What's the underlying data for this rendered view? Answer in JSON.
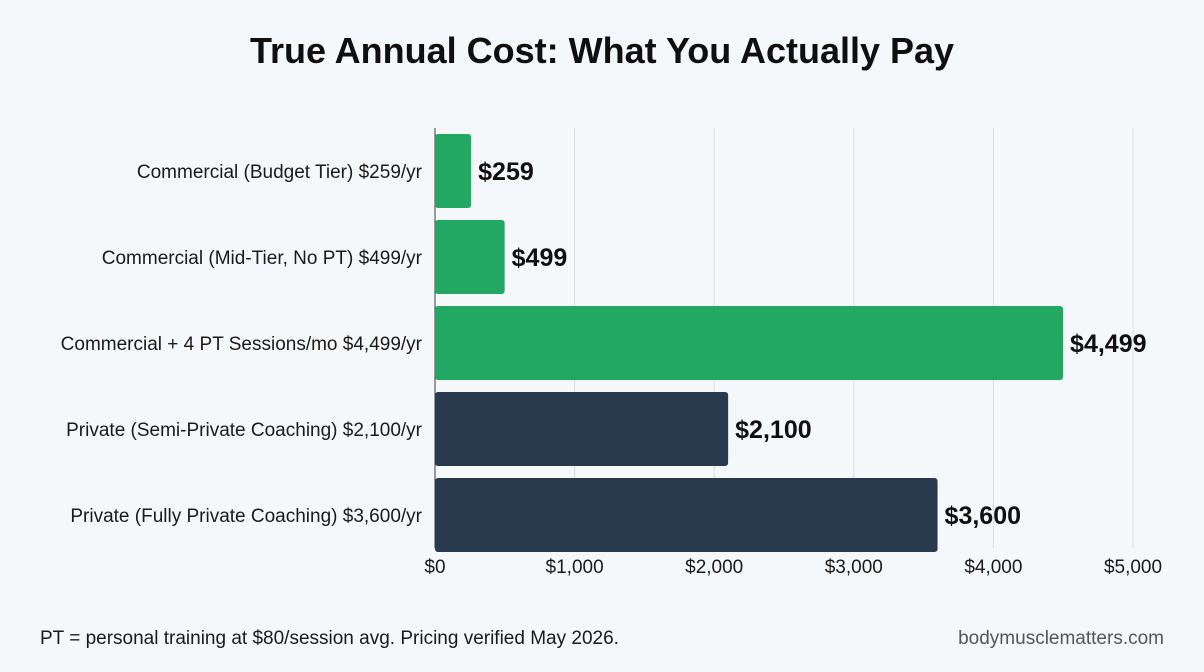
{
  "chart_data": {
    "type": "bar",
    "orientation": "horizontal",
    "title": "True Annual Cost: What You Actually Pay",
    "categories": [
      "Commercial (Budget Tier) $259/yr",
      "Commercial (Mid-Tier, No PT) $499/yr",
      "Commercial + 4 PT Sessions/mo $4,499/yr",
      "Private (Semi-Private Coaching) $2,100/yr",
      "Private (Fully Private Coaching) $3,600/yr"
    ],
    "values": [
      259,
      499,
      4499,
      2100,
      3600
    ],
    "value_labels": [
      "$259",
      "$499",
      "$4,499",
      "$2,100",
      "$3,600"
    ],
    "bar_colors": [
      "#22a862",
      "#22a862",
      "#22a862",
      "#293a4f",
      "#293a4f"
    ],
    "xlim": [
      0,
      5000
    ],
    "xticks": [
      0,
      1000,
      2000,
      3000,
      4000,
      5000
    ],
    "xtick_labels": [
      "$0",
      "$1,000",
      "$2,000",
      "$3,000",
      "$4,000",
      "$5,000"
    ],
    "xlabel": "",
    "ylabel": "",
    "grid": "vertical",
    "legend": "none"
  },
  "footnote": "PT = personal training at $80/session avg. Pricing verified May 2026.",
  "source": "bodymusclematters.com"
}
